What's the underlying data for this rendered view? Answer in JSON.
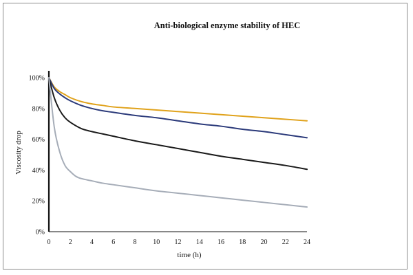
{
  "chart_data": {
    "type": "line",
    "title": "Anti-biological enzyme stability of HEC",
    "xlabel": "time (h)",
    "ylabel": "Viscosity drop",
    "xlim": [
      0,
      24
    ],
    "ylim": [
      0,
      100
    ],
    "x_ticks": [
      "0",
      "2",
      "4",
      "6",
      "8",
      "10",
      "12",
      "14",
      "16",
      "18",
      "20",
      "22",
      "24"
    ],
    "y_ticks": [
      "0%",
      "20%",
      "40%",
      "60%",
      "80%",
      "100%"
    ],
    "grid": false,
    "legend": "none",
    "series": [
      {
        "color": "#E0A21B",
        "x": [
          0,
          0.5,
          1,
          1.5,
          2,
          3,
          4,
          5,
          6,
          8,
          10,
          12,
          14,
          16,
          18,
          20,
          22,
          24
        ],
        "y": [
          100,
          94,
          91,
          89,
          87,
          84.5,
          83,
          82,
          81,
          80,
          79,
          78,
          77,
          76,
          75,
          74,
          73,
          72
        ]
      },
      {
        "color": "#2B3A7A",
        "x": [
          0,
          0.5,
          1,
          1.5,
          2,
          3,
          4,
          5,
          6,
          8,
          10,
          12,
          14,
          16,
          18,
          20,
          22,
          24
        ],
        "y": [
          100,
          93,
          89.5,
          87,
          85,
          82,
          80,
          78.5,
          77.5,
          75.5,
          74,
          72,
          70,
          68.5,
          66.5,
          65,
          63,
          61
        ]
      },
      {
        "color": "#1A1A1A",
        "x": [
          0,
          0.5,
          1,
          1.5,
          2,
          3,
          4,
          5,
          6,
          8,
          10,
          12,
          14,
          16,
          18,
          20,
          22,
          24
        ],
        "y": [
          100,
          87,
          79,
          74,
          71,
          67,
          65,
          63.5,
          62,
          59,
          56.5,
          54,
          51.5,
          49,
          47,
          45,
          43,
          40.5
        ]
      },
      {
        "color": "#A6ADB8",
        "x": [
          0,
          0.5,
          1,
          1.5,
          2,
          2.5,
          3,
          4,
          5,
          6,
          8,
          10,
          12,
          14,
          16,
          18,
          20,
          22,
          24
        ],
        "y": [
          100,
          68,
          52,
          43,
          39,
          36,
          34.5,
          33,
          31.5,
          30.5,
          28.5,
          26.5,
          25,
          23.5,
          22,
          20.5,
          19,
          17.5,
          16
        ]
      }
    ]
  }
}
